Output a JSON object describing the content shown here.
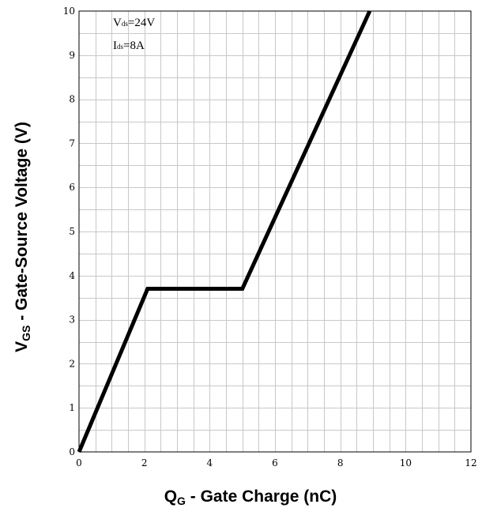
{
  "chart_data": {
    "type": "line",
    "xlabel": {
      "main": "Q",
      "sub": "G",
      "rest": " - Gate Charge (nC)"
    },
    "ylabel": {
      "main": "V",
      "sub": "GS",
      "rest": " - Gate-Source Voltage (V)"
    },
    "xlim": [
      0,
      12
    ],
    "ylim": [
      0,
      10
    ],
    "xticks": [
      0,
      2,
      4,
      6,
      8,
      10,
      12
    ],
    "yticks": [
      0,
      1,
      2,
      3,
      4,
      5,
      6,
      7,
      8,
      9,
      10
    ],
    "grid": true,
    "minor_grid_x": 0.5,
    "minor_grid_y": 0.5,
    "series": [
      {
        "x": [
          0,
          2.1,
          5.0,
          8.9
        ],
        "y": [
          0,
          3.7,
          3.7,
          10.0
        ],
        "color": "#000000"
      }
    ],
    "annotations": [
      {
        "main": "V",
        "sub": "ds",
        "rest": "=24V"
      },
      {
        "main": "I",
        "sub": "ds",
        "rest": "=8A"
      }
    ]
  }
}
